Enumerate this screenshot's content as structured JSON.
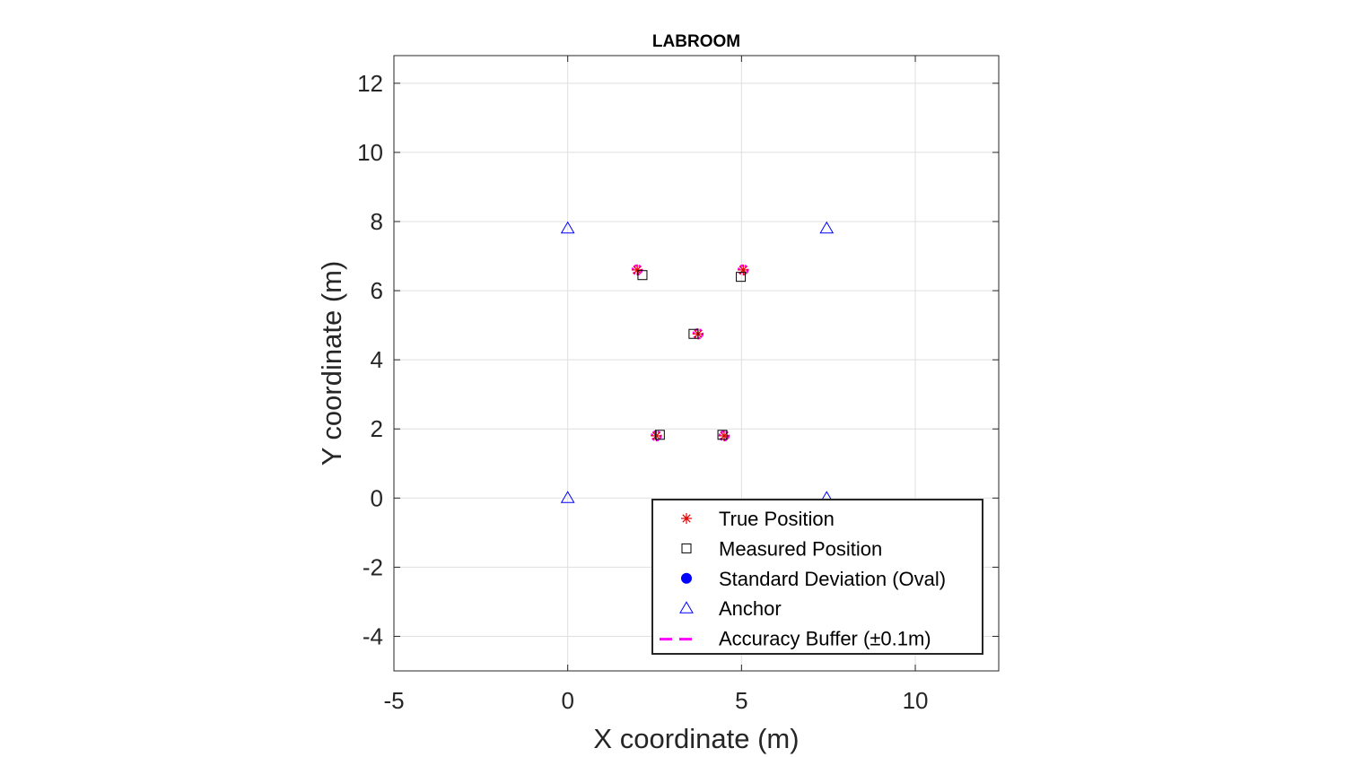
{
  "chart_data": {
    "type": "scatter",
    "title": "LABROOM",
    "xlabel": "X coordinate (m)",
    "ylabel": "Y coordinate (m)",
    "xlim": [
      -5,
      12.4
    ],
    "ylim": [
      -5,
      12.8
    ],
    "xticks": [
      -5,
      0,
      5,
      10
    ],
    "yticks": [
      -4,
      -2,
      0,
      2,
      4,
      6,
      8,
      10,
      12
    ],
    "grid": true,
    "legend_position": "bottom-right",
    "series": [
      {
        "name": "True Position",
        "marker": "asterisk",
        "color": "#e00000",
        "points": [
          [
            2.0,
            6.6
          ],
          [
            5.05,
            6.6
          ],
          [
            3.75,
            4.75
          ],
          [
            2.55,
            1.8
          ],
          [
            4.5,
            1.8
          ]
        ]
      },
      {
        "name": "Measured Position",
        "marker": "square",
        "color": "#000000",
        "points": [
          [
            2.15,
            6.45
          ],
          [
            4.98,
            6.4
          ],
          [
            3.62,
            4.75
          ],
          [
            2.65,
            1.83
          ],
          [
            4.45,
            1.83
          ]
        ]
      },
      {
        "name": "Standard Deviation (Oval)",
        "marker": "filled-circle",
        "color": "#0000ff",
        "points": []
      },
      {
        "name": "Anchor",
        "marker": "triangle",
        "color": "#0000ff",
        "points": [
          [
            0,
            7.8
          ],
          [
            7.45,
            7.8
          ],
          [
            0,
            0
          ],
          [
            7.45,
            0
          ]
        ]
      },
      {
        "name": "Accuracy Buffer (±0.1m)",
        "marker": "dashed-circle",
        "color": "#ff00ff",
        "radius": 0.1,
        "points": [
          [
            2.0,
            6.6
          ],
          [
            5.05,
            6.6
          ],
          [
            3.75,
            4.75
          ],
          [
            2.55,
            1.8
          ],
          [
            4.5,
            1.8
          ]
        ]
      }
    ]
  }
}
